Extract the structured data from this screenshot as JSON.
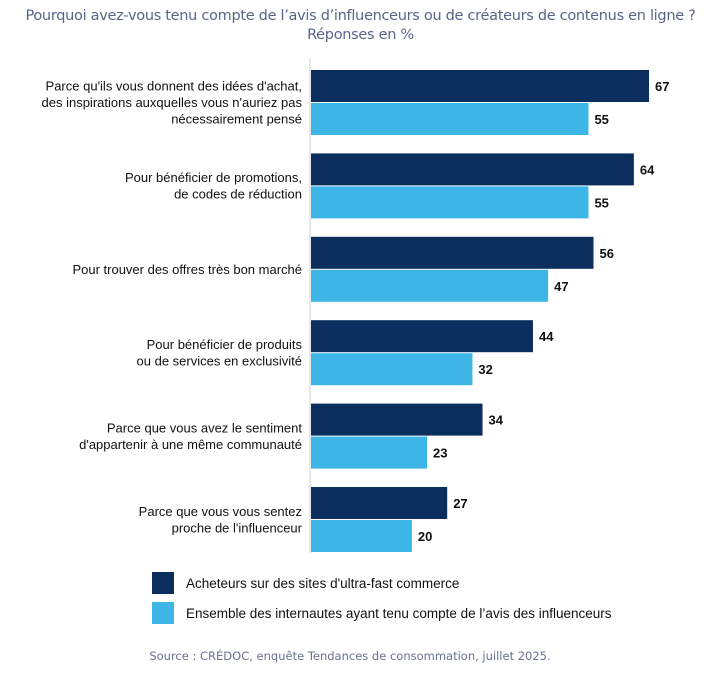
{
  "chart_data": {
    "type": "bar",
    "orientation": "horizontal",
    "title": "Pourquoi avez-vous tenu compte de l’avis d’influenceurs ou de créateurs de contenus en ligne ?",
    "subtitle": "Réponses en %",
    "categories": [
      [
        "Parce qu'ils vous donnent des idées d'achat,",
        "des inspirations auxquelles vous n'auriez pas",
        "nécessairement pensé"
      ],
      [
        "Pour bénéficier de promotions,",
        "de codes de réduction"
      ],
      [
        "Pour trouver des offres très bon marché"
      ],
      [
        "Pour bénéficier de produits",
        "ou de services en exclusivité"
      ],
      [
        "Parce que vous avez le sentiment",
        "d'appartenir à une même communauté"
      ],
      [
        "Parce que vous vous sentez",
        "proche de l'influenceur"
      ]
    ],
    "series": [
      {
        "name": "Acheteurs sur des sites d'ultra-fast commerce",
        "color": "#0b2e5e",
        "values": [
          67,
          64,
          56,
          44,
          34,
          27
        ]
      },
      {
        "name": "Ensemble des internautes ayant tenu compte de l’avis des influenceurs",
        "color": "#3db5e6",
        "values": [
          55,
          55,
          47,
          32,
          23,
          20
        ]
      }
    ],
    "xlim": [
      0,
      70
    ],
    "grid": false,
    "data_labels": true,
    "legend_position": "bottom",
    "source": "Source : CRÉDOC, enquête Tendances de consommation, juillet 2025."
  }
}
